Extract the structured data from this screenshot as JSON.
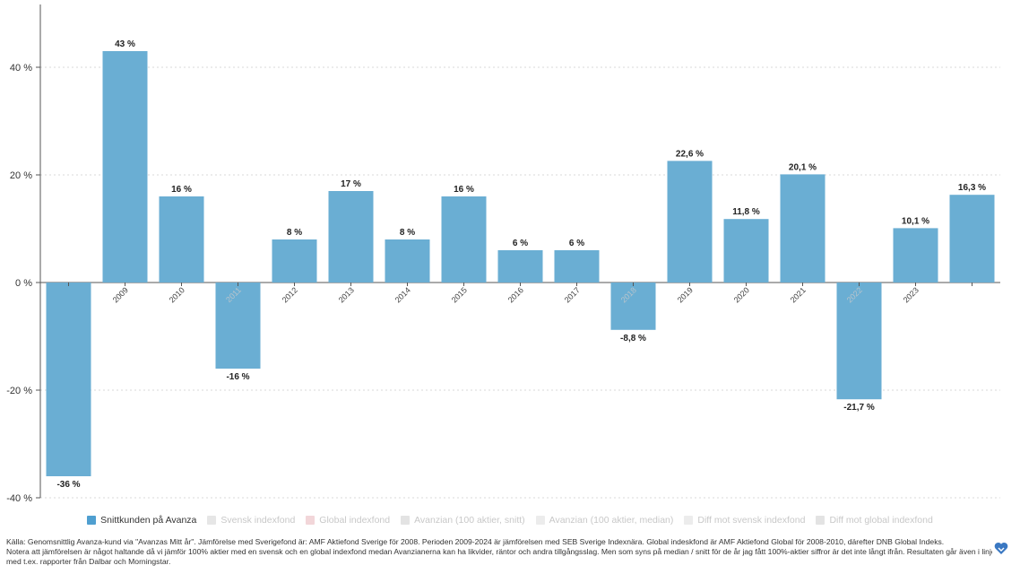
{
  "chart_data": {
    "type": "bar",
    "categories": [
      "",
      "2009",
      "2010",
      "2011",
      "2012",
      "2013",
      "2014",
      "2015",
      "2016",
      "2017",
      "2018",
      "2019",
      "2020",
      "2021",
      "2022",
      "2023",
      ""
    ],
    "category_faded": [
      false,
      false,
      false,
      true,
      false,
      false,
      false,
      false,
      false,
      false,
      true,
      false,
      false,
      false,
      true,
      false,
      false
    ],
    "series": [
      {
        "name": "Snittkunden på Avanza",
        "values": [
          -36,
          43,
          16,
          -16,
          8,
          17,
          8,
          16,
          6,
          6,
          -8.8,
          22.6,
          11.8,
          20.1,
          -21.7,
          10.1,
          16.3
        ],
        "labels": [
          "-36 %",
          "43 %",
          "16 %",
          "-16 %",
          "8 %",
          "17 %",
          "8 %",
          "16 %",
          "6 %",
          "6 %",
          "-8,8 %",
          "22,6 %",
          "11,8 %",
          "20,1 %",
          "-21,7 %",
          "10,1 %",
          "16,3 %"
        ]
      }
    ],
    "yticks": [
      -40,
      -20,
      0,
      20,
      40
    ],
    "ytick_labels": [
      "-40 %",
      "-20 %",
      "0 %",
      "20 %",
      "40 %"
    ],
    "ylim": [
      -40,
      50
    ],
    "grid": true,
    "colors": {
      "bar": "#6aaed3",
      "grid": "#d8d8d8",
      "axis": "#555555"
    }
  },
  "legend": {
    "items": [
      {
        "label": "Snittkunden på Avanza",
        "color": "#4f9fd0",
        "active": true
      },
      {
        "label": "Svensk indexfond",
        "color": "#e6e6e6",
        "active": false
      },
      {
        "label": "Global indexfond",
        "color": "#f2d6d9",
        "active": false
      },
      {
        "label": "Avanzian (100 aktier, snitt)",
        "color": "#e3e3e3",
        "active": false
      },
      {
        "label": "Avanzian (100 aktier, median)",
        "color": "#ececec",
        "active": false
      },
      {
        "label": "Diff mot svensk indexfond",
        "color": "#ececec",
        "active": false
      },
      {
        "label": "Diff mot global indexfond",
        "color": "#e3e3e3",
        "active": false
      }
    ]
  },
  "source": {
    "line1": "Källa: Genomsnittlig Avanza-kund via \"Avanzas Mitt år\". Jämförelse med Sverigefond är: AMF Aktiefond Sverige för 2008. Perioden 2009-2024 är jämförelsen med SEB Sverige Indexnära. Global indeskfond är AMF Aktiefond Global för 2008-2010, därefter DNB Global Indeks.",
    "line2": "Notera att jämförelsen är något haltande då vi jämför 100% aktier med en svensk och en global indexfond medan Avanzianerna kan ha likvider, räntor och andra tillgångsslag. Men som syns på median / snitt för de år jag fått 100%-aktier siffror är det inte långt ifrån. Resultaten går även i linje",
    "line3": "med t.ex. rapporter från Dalbar och Morningstar."
  },
  "logo": {
    "icon": "heart-logo-icon",
    "color": "#3a78c2"
  }
}
